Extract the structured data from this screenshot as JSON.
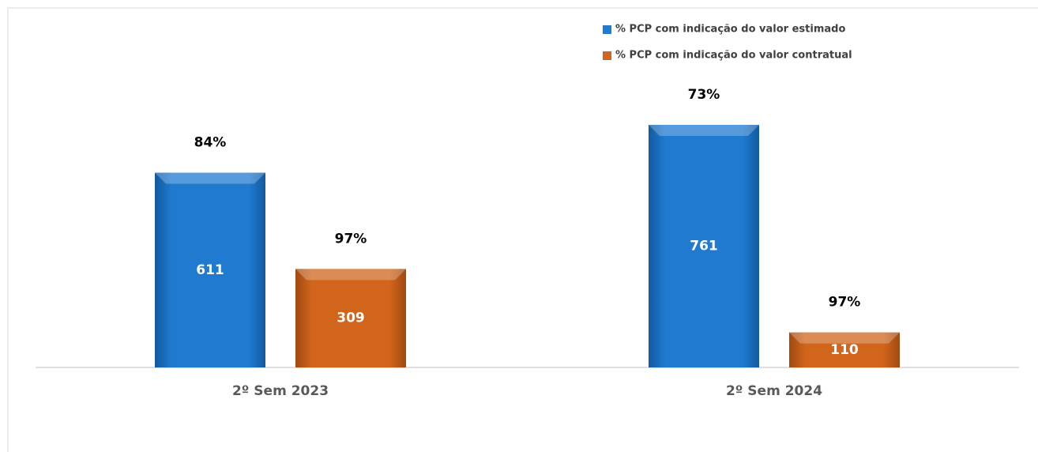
{
  "chart_data": {
    "type": "bar",
    "categories": [
      "2º Sem 2023",
      "2º Sem 2024"
    ],
    "series": [
      {
        "name": "% PCP com indicação do valor estimado",
        "color": "#1f7ad0",
        "values": [
          611,
          761
        ],
        "labels": [
          "84%",
          "73%"
        ]
      },
      {
        "name": "% PCP com indicação do valor contratual",
        "color": "#d2651c",
        "values": [
          309,
          110
        ],
        "labels": [
          "97%",
          "97%"
        ]
      }
    ],
    "legend": "top-right"
  }
}
